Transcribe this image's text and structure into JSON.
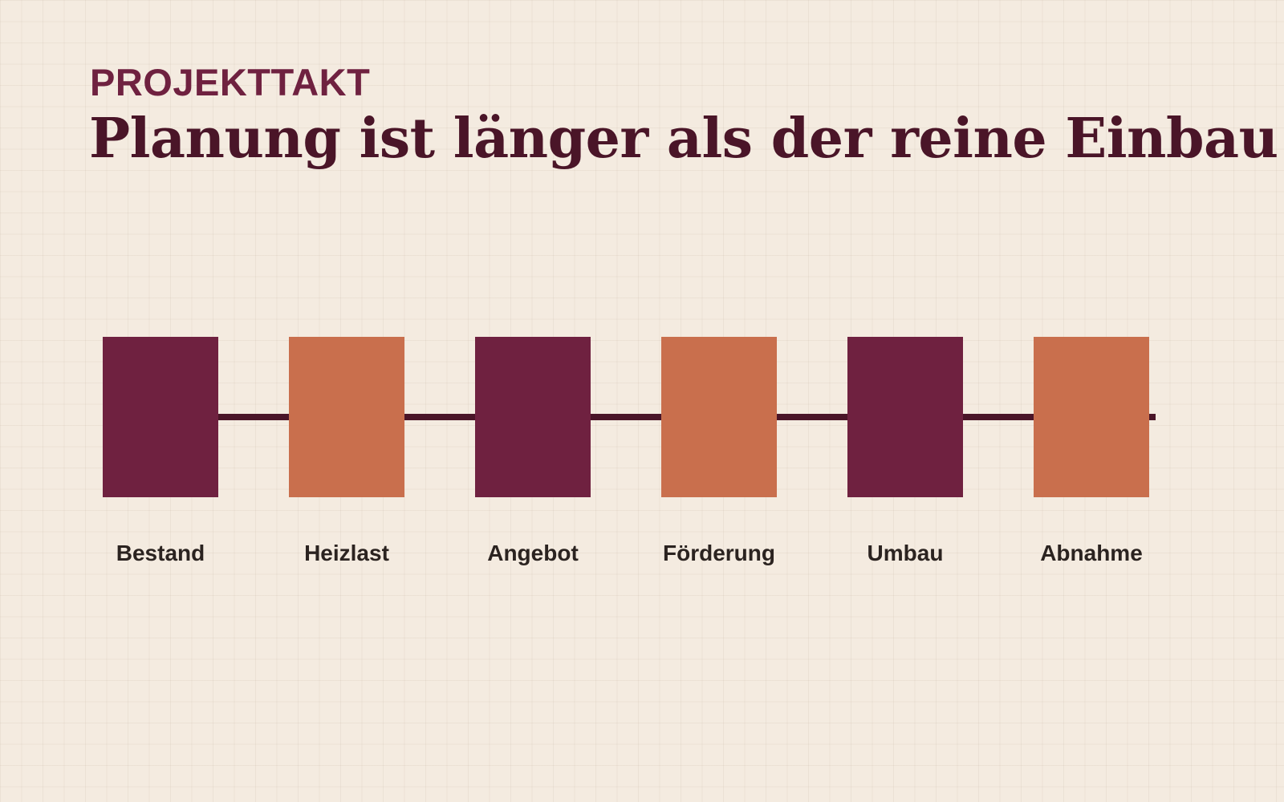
{
  "header": {
    "eyebrow": "PROJEKTTAKT",
    "title": "Planung ist länger als der reine Einbau"
  },
  "colors": {
    "plum": "#6f2140",
    "terracotta": "#c96f4d",
    "line": "#4a1528",
    "background": "#f4ebe0"
  },
  "steps": [
    {
      "label": "Bestand",
      "color": "#6f2140"
    },
    {
      "label": "Heizlast",
      "color": "#c96f4d"
    },
    {
      "label": "Angebot",
      "color": "#6f2140"
    },
    {
      "label": "Förderung",
      "color": "#c96f4d"
    },
    {
      "label": "Umbau",
      "color": "#6f2140"
    },
    {
      "label": "Abnahme",
      "color": "#c96f4d"
    }
  ]
}
